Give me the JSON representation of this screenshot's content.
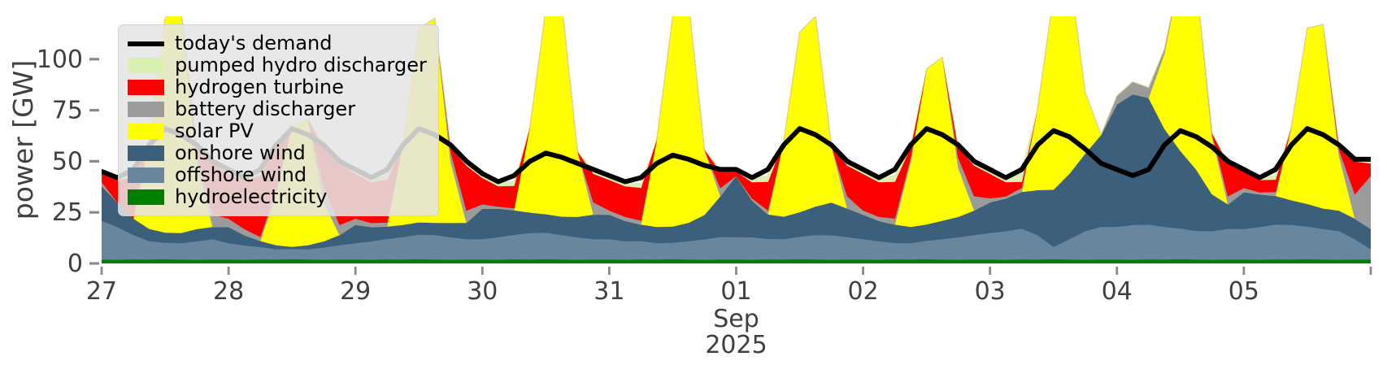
{
  "figure": {
    "y_axis_label": "power [GW]",
    "x_month_label": "Sep",
    "x_year_label": "2025"
  },
  "chart_data": {
    "type": "area",
    "stacked": true,
    "title": "",
    "xlabel": "Sep 2025",
    "ylabel": "power [GW]",
    "unit": "GW",
    "time_start": "2025-08-27 00:00",
    "time_end": "2025-09-06 00:00",
    "step_hours": 3,
    "ylim": [
      0,
      121
    ],
    "y_ticks": [
      0,
      25,
      50,
      75,
      100
    ],
    "x_ticks": [
      {
        "hour": 0,
        "label": "27"
      },
      {
        "hour": 24,
        "label": "28"
      },
      {
        "hour": 48,
        "label": "29"
      },
      {
        "hour": 72,
        "label": "30"
      },
      {
        "hour": 96,
        "label": "31"
      },
      {
        "hour": 120,
        "label": "01"
      },
      {
        "hour": 144,
        "label": "02"
      },
      {
        "hour": 168,
        "label": "03"
      },
      {
        "hour": 192,
        "label": "04"
      },
      {
        "hour": 216,
        "label": "05"
      },
      {
        "hour": 240,
        "label": ""
      }
    ],
    "x_month_hour": 120,
    "style": {
      "tick_color": "#8a8a8a",
      "text_color": "#404040",
      "demand_line_color": "#000000",
      "legend_bg": "#e5e5e5"
    },
    "series": [
      {
        "name": "hydroelectricity",
        "color": "#008000",
        "values": [
          2,
          1.9,
          2.1,
          2,
          2.2,
          2,
          1.9,
          2,
          2,
          1.9,
          2.1,
          2,
          2.2,
          2,
          1.9,
          2,
          2,
          1.9,
          2.1,
          2,
          2.2,
          2,
          1.9,
          2,
          2,
          1.9,
          2.1,
          2,
          2.2,
          2,
          1.9,
          2,
          2,
          1.9,
          2.1,
          2,
          2.2,
          2,
          1.9,
          2,
          2,
          1.9,
          2.1,
          2,
          2.2,
          2,
          1.9,
          2,
          2,
          1.9,
          2.1,
          2,
          2.2,
          2,
          1.9,
          2,
          2,
          1.9,
          2.1,
          2,
          2.2,
          2,
          1.9,
          2,
          2,
          1.9,
          2.1,
          2,
          2.2,
          2,
          1.9,
          2,
          2,
          1.9,
          2.1,
          2,
          2.2,
          2,
          1.9,
          2,
          2
        ]
      },
      {
        "name": "offshore wind",
        "color": "#68879f",
        "values": [
          19,
          16,
          12,
          9,
          8,
          8,
          9,
          10,
          8,
          7,
          6,
          5,
          5,
          5,
          6,
          7,
          8,
          9,
          10,
          11,
          12,
          12,
          11,
          10,
          10,
          11,
          12,
          13,
          13,
          12,
          11,
          10,
          10,
          9,
          9,
          8,
          8,
          9,
          10,
          11,
          11,
          11,
          10,
          10,
          11,
          12,
          12,
          11,
          10,
          9,
          8,
          8,
          9,
          10,
          11,
          12,
          13,
          14,
          15,
          12,
          6,
          10,
          14,
          16,
          16,
          17,
          17,
          16,
          15,
          14,
          14,
          15,
          15,
          16,
          17,
          17,
          16,
          15,
          14,
          10,
          5
        ]
      },
      {
        "name": "onshore wind",
        "color": "#3c5f7c",
        "values": [
          17,
          12,
          8,
          6,
          5,
          5,
          6,
          6,
          8,
          5,
          3,
          2,
          1,
          2,
          3,
          5,
          9,
          7,
          6,
          6,
          6,
          6,
          7,
          8,
          15,
          14,
          12,
          10,
          9,
          9,
          10,
          12,
          12,
          10,
          8,
          8,
          8,
          9,
          12,
          20,
          30,
          18,
          12,
          11,
          12,
          14,
          16,
          14,
          12,
          10,
          9,
          8,
          8,
          9,
          10,
          12,
          15,
          16,
          18,
          22,
          28,
          32,
          38,
          45,
          60,
          64,
          62,
          48,
          38,
          30,
          18,
          12,
          18,
          16,
          14,
          12,
          11,
          10,
          10,
          10,
          10
        ]
      },
      {
        "name": "solar PV",
        "color": "#ffff00",
        "values": [
          0,
          0,
          0,
          44,
          105,
          110,
          33,
          0,
          0,
          0,
          0,
          25,
          59,
          62,
          19,
          0,
          0,
          0,
          0,
          40,
          95,
          100,
          30,
          0,
          0,
          0,
          0,
          42,
          100,
          105,
          32,
          0,
          0,
          0,
          0,
          43,
          103,
          108,
          32,
          0,
          0,
          0,
          0,
          37,
          88,
          93,
          28,
          0,
          0,
          0,
          0,
          32,
          76,
          80,
          24,
          0,
          0,
          0,
          0,
          40,
          95,
          100,
          30,
          0,
          0,
          0,
          0,
          37,
          87,
          92,
          28,
          0,
          0,
          0,
          0,
          36,
          86,
          90,
          27,
          0,
          0
        ]
      },
      {
        "name": "battery discharger",
        "color": "#9b9b9b",
        "values": [
          2,
          0,
          0,
          0,
          0,
          0,
          4,
          6,
          4,
          3,
          2,
          2,
          0,
          0,
          8,
          5,
          3,
          2,
          2,
          0,
          0,
          0,
          5,
          6,
          2,
          1,
          1,
          0,
          0,
          0,
          0,
          6,
          2,
          2,
          2,
          0,
          0,
          0,
          0,
          4,
          0,
          1,
          2,
          0,
          0,
          0,
          0,
          6,
          2,
          2,
          3,
          2,
          0,
          0,
          5,
          7,
          2,
          1,
          2,
          0,
          0,
          0,
          0,
          0,
          4,
          6,
          5,
          2,
          0,
          0,
          2,
          4,
          2,
          1,
          2,
          0,
          0,
          0,
          3,
          12,
          26
        ]
      },
      {
        "name": "hydrogen turbine",
        "color": "#ff0000",
        "values": [
          4,
          11,
          20,
          0,
          0,
          0,
          3,
          25,
          22,
          24,
          30,
          21,
          0,
          0,
          19,
          30,
          22,
          20,
          21,
          0,
          0,
          0,
          2,
          22,
          13,
          10,
          11,
          0,
          0,
          0,
          0,
          14,
          15,
          15,
          16,
          0,
          0,
          0,
          0,
          8,
          2,
          8,
          14,
          0,
          0,
          0,
          0,
          15,
          18,
          17,
          18,
          5,
          0,
          0,
          5,
          15,
          12,
          7,
          3,
          0,
          0,
          0,
          0,
          0,
          0,
          0,
          0,
          0,
          0,
          0,
          0,
          16,
          8,
          6,
          6,
          0,
          0,
          0,
          2,
          16,
          6
        ]
      },
      {
        "name": "pumped hydro discharger",
        "color": "#d8f0b0",
        "values": [
          1.5,
          1,
          2,
          0,
          0,
          0,
          1,
          1,
          2,
          2,
          2,
          1,
          0,
          0,
          2,
          2,
          2,
          2,
          2,
          0,
          0,
          0,
          1,
          2,
          2,
          2,
          2,
          0,
          0,
          0,
          0,
          2,
          2,
          2,
          2,
          0,
          0,
          0,
          0,
          1,
          1,
          2,
          3,
          0,
          0,
          0,
          0,
          2,
          2,
          2,
          3,
          1,
          0,
          0,
          1,
          2,
          2,
          3,
          6,
          0,
          0,
          0,
          0,
          0,
          0,
          0,
          0,
          0,
          0,
          0,
          0,
          1,
          1,
          1,
          2,
          0,
          0,
          0,
          0,
          1,
          1
        ]
      }
    ],
    "demand": {
      "name": "today's demand",
      "color": "#000000",
      "values": [
        45,
        42,
        46,
        58,
        66,
        63,
        58,
        50,
        46,
        42,
        46,
        58,
        66,
        63,
        58,
        50,
        46,
        42,
        46,
        58,
        66,
        63,
        58,
        50,
        44,
        40,
        43,
        50,
        54,
        52,
        49,
        46,
        43,
        40,
        42,
        49,
        53,
        51,
        48,
        46,
        46,
        42,
        46,
        58,
        66,
        63,
        58,
        50,
        46,
        42,
        46,
        58,
        66,
        63,
        58,
        50,
        46,
        42,
        46,
        58,
        65,
        62,
        56,
        49,
        46,
        43,
        46,
        58,
        65,
        62,
        57,
        50,
        46,
        42,
        46,
        58,
        66,
        63,
        58,
        51,
        51
      ]
    },
    "legend_position": "upper left",
    "legend": {
      "items": [
        {
          "label": "today's demand",
          "color": "#000000",
          "type": "line"
        },
        {
          "label": "pumped hydro discharger",
          "color": "#d8f0b0",
          "type": "patch"
        },
        {
          "label": "hydrogen turbine",
          "color": "#ff0000",
          "type": "patch"
        },
        {
          "label": "battery discharger",
          "color": "#9b9b9b",
          "type": "patch"
        },
        {
          "label": "solar PV",
          "color": "#ffff00",
          "type": "patch"
        },
        {
          "label": "onshore wind",
          "color": "#3c5f7c",
          "type": "patch"
        },
        {
          "label": "offshore wind",
          "color": "#68879f",
          "type": "patch"
        },
        {
          "label": "hydroelectricity",
          "color": "#008000",
          "type": "patch"
        }
      ]
    }
  }
}
